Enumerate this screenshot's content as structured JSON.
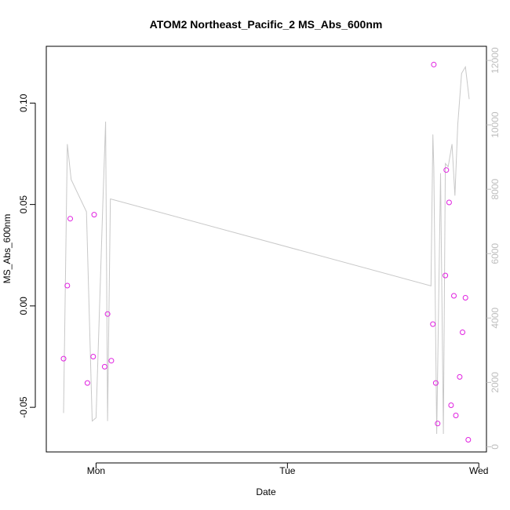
{
  "chart_data": {
    "type": "scatter",
    "title": "ATOM2 Northeast_Pacific_2 MS_Abs_600nm",
    "xlabel": "Date",
    "ylabel": "MS_Abs_600nm",
    "x_ticks": [
      "Mon",
      "Tue",
      "Wed"
    ],
    "x_tick_values": [
      1.0,
      2.0,
      3.0
    ],
    "xlim": [
      0.74,
      3.04
    ],
    "y_ticks": [
      "-0.05",
      "0.00",
      "0.05",
      "0.10"
    ],
    "y_tick_values": [
      -0.05,
      0.0,
      0.05,
      0.1
    ],
    "ylim": [
      -0.072,
      0.128
    ],
    "y2_ticks": [
      "0",
      "2000",
      "4000",
      "6000",
      "8000",
      "10000",
      "12000"
    ],
    "y2_tick_values": [
      0,
      2000,
      4000,
      6000,
      8000,
      10000,
      12000
    ],
    "y2lim": [
      -160,
      12440
    ],
    "grid": false,
    "colors": {
      "points": "#e020e0",
      "line": "#c8c8c8",
      "axis": "#000000",
      "right_axis": "#bdbdbd"
    },
    "series": [
      {
        "kind": "points",
        "axis": "left",
        "x": [
          0.83,
          0.85,
          0.865,
          0.955,
          0.985,
          0.99,
          1.045,
          1.06,
          1.08,
          2.76,
          2.765,
          2.775,
          2.785,
          2.825,
          2.83,
          2.845,
          2.855,
          2.87,
          2.88,
          2.9,
          2.915,
          2.93,
          2.945
        ],
        "y": [
          -0.026,
          0.01,
          0.043,
          -0.038,
          -0.025,
          0.045,
          -0.03,
          -0.004,
          -0.027,
          -0.009,
          0.119,
          -0.038,
          -0.058,
          0.015,
          0.067,
          0.051,
          -0.049,
          0.005,
          -0.054,
          -0.035,
          -0.013,
          0.004,
          -0.066
        ]
      },
      {
        "kind": "line",
        "axis": "right",
        "x": [
          0.83,
          0.85,
          0.87,
          0.95,
          0.98,
          1.0,
          1.035,
          1.05,
          1.06,
          1.075,
          2.75,
          2.76,
          2.765,
          2.78,
          2.8,
          2.815,
          2.825,
          2.84,
          2.86,
          2.875,
          2.89,
          2.91,
          2.93,
          2.95
        ],
        "y": [
          1050,
          9400,
          8300,
          7300,
          800,
          900,
          7500,
          10100,
          800,
          7700,
          5000,
          9700,
          8700,
          400,
          8500,
          400,
          8800,
          8700,
          9400,
          7800,
          10000,
          11600,
          11800,
          10800
        ]
      }
    ]
  }
}
